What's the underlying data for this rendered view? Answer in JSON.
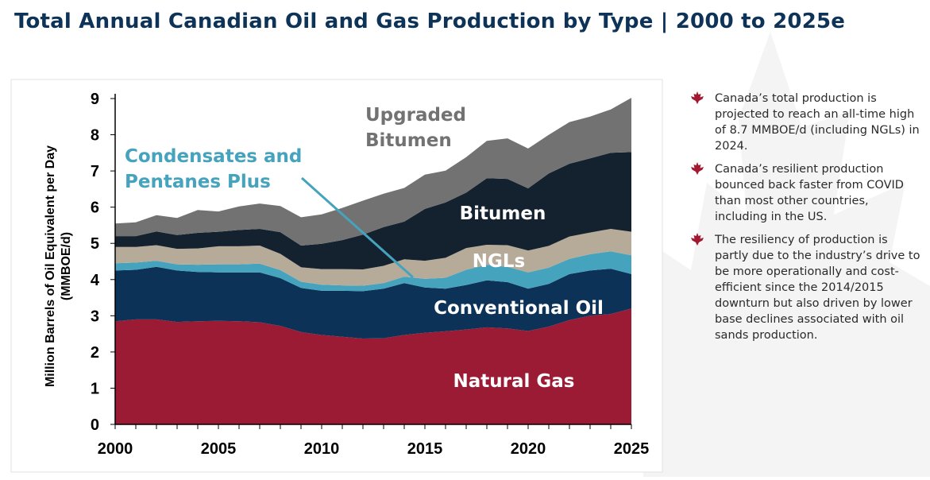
{
  "title": "Total Annual Canadian Oil and Gas Production by Type | 2000 to 2025e",
  "bullets": [
    {
      "text": "Canada’s total production is projected to reach an all-time high of 8.7 MMBOE/d (including NGLs) in 2024.",
      "icon": "maple-leaf-icon"
    },
    {
      "text": "Canada’s resilient production bounced back faster from COVID than most other countries, including in the US.",
      "icon": "maple-leaf-icon"
    },
    {
      "text": "The resiliency of production is partly due to the industry’s drive to be more operationally and cost-efficient since the 2014/2015 downturn but also driven by lower base declines associated with oil sands production.",
      "icon": "maple-leaf-icon"
    }
  ],
  "colors": {
    "title": "#0d3358",
    "bullet_icon": "#a3192f",
    "natural_gas": "#9b1a34",
    "conventional_oil": "#0c3257",
    "condensates": "#46a3bd",
    "ngls": "#b6ab98",
    "bitumen": "#14212e",
    "upgraded_bitumen": "#727272"
  },
  "chart_data": {
    "type": "area",
    "stacked": true,
    "title": "",
    "xlabel": "",
    "ylabel": "Million Barrels of Oil Equivalent per Day (MMBOE/d)",
    "xlim": [
      2000,
      2025
    ],
    "ylim": [
      0,
      9
    ],
    "x_ticks": [
      "2000",
      "2005",
      "2010",
      "2015",
      "2020",
      "2025"
    ],
    "y_ticks": [
      "0",
      "1",
      "2",
      "3",
      "4",
      "5",
      "6",
      "7",
      "8",
      "9"
    ],
    "x": [
      2000,
      2001,
      2002,
      2003,
      2004,
      2005,
      2006,
      2007,
      2008,
      2009,
      2010,
      2011,
      2012,
      2013,
      2014,
      2015,
      2016,
      2017,
      2018,
      2019,
      2020,
      2021,
      2022,
      2023,
      2024,
      2025
    ],
    "series": [
      {
        "name": "Natural Gas",
        "values": [
          2.85,
          2.9,
          2.9,
          2.83,
          2.85,
          2.86,
          2.85,
          2.82,
          2.72,
          2.55,
          2.47,
          2.42,
          2.37,
          2.38,
          2.47,
          2.53,
          2.57,
          2.62,
          2.68,
          2.65,
          2.58,
          2.7,
          2.88,
          3.0,
          3.05,
          3.2
        ]
      },
      {
        "name": "Conventional Oil",
        "values": [
          1.4,
          1.37,
          1.45,
          1.42,
          1.36,
          1.34,
          1.35,
          1.38,
          1.32,
          1.22,
          1.22,
          1.27,
          1.31,
          1.37,
          1.43,
          1.25,
          1.18,
          1.23,
          1.3,
          1.28,
          1.17,
          1.18,
          1.27,
          1.25,
          1.25,
          0.95
        ]
      },
      {
        "name": "Condensates and Pentanes Plus",
        "values": [
          0.2,
          0.2,
          0.17,
          0.17,
          0.2,
          0.22,
          0.22,
          0.24,
          0.22,
          0.17,
          0.17,
          0.15,
          0.15,
          0.15,
          0.18,
          0.24,
          0.3,
          0.42,
          0.43,
          0.42,
          0.45,
          0.45,
          0.42,
          0.45,
          0.48,
          0.52
        ]
      },
      {
        "name": "NGLs",
        "values": [
          0.45,
          0.43,
          0.43,
          0.43,
          0.45,
          0.5,
          0.5,
          0.5,
          0.45,
          0.4,
          0.43,
          0.45,
          0.45,
          0.48,
          0.48,
          0.5,
          0.55,
          0.6,
          0.55,
          0.6,
          0.6,
          0.6,
          0.62,
          0.6,
          0.62,
          0.65
        ]
      },
      {
        "name": "Bitumen",
        "values": [
          0.3,
          0.3,
          0.38,
          0.38,
          0.43,
          0.4,
          0.45,
          0.46,
          0.6,
          0.6,
          0.7,
          0.8,
          0.96,
          1.07,
          1.04,
          1.43,
          1.53,
          1.53,
          1.84,
          1.83,
          1.72,
          2.0,
          2.01,
          2.05,
          2.1,
          2.2
        ]
      },
      {
        "name": "Upgraded Bitumen",
        "values": [
          0.35,
          0.38,
          0.45,
          0.47,
          0.63,
          0.56,
          0.65,
          0.7,
          0.72,
          0.78,
          0.81,
          0.89,
          0.94,
          0.92,
          0.93,
          0.95,
          0.88,
          0.98,
          1.03,
          1.12,
          1.1,
          1.07,
          1.15,
          1.15,
          1.2,
          1.5
        ]
      }
    ],
    "series_labels": [
      {
        "text": "Natural Gas"
      },
      {
        "text": "Conventional Oil"
      },
      {
        "text": "Condensates and Pentanes Plus"
      },
      {
        "text": "NGLs"
      },
      {
        "text": "Bitumen"
      },
      {
        "text": "Upgraded Bitumen"
      }
    ]
  }
}
